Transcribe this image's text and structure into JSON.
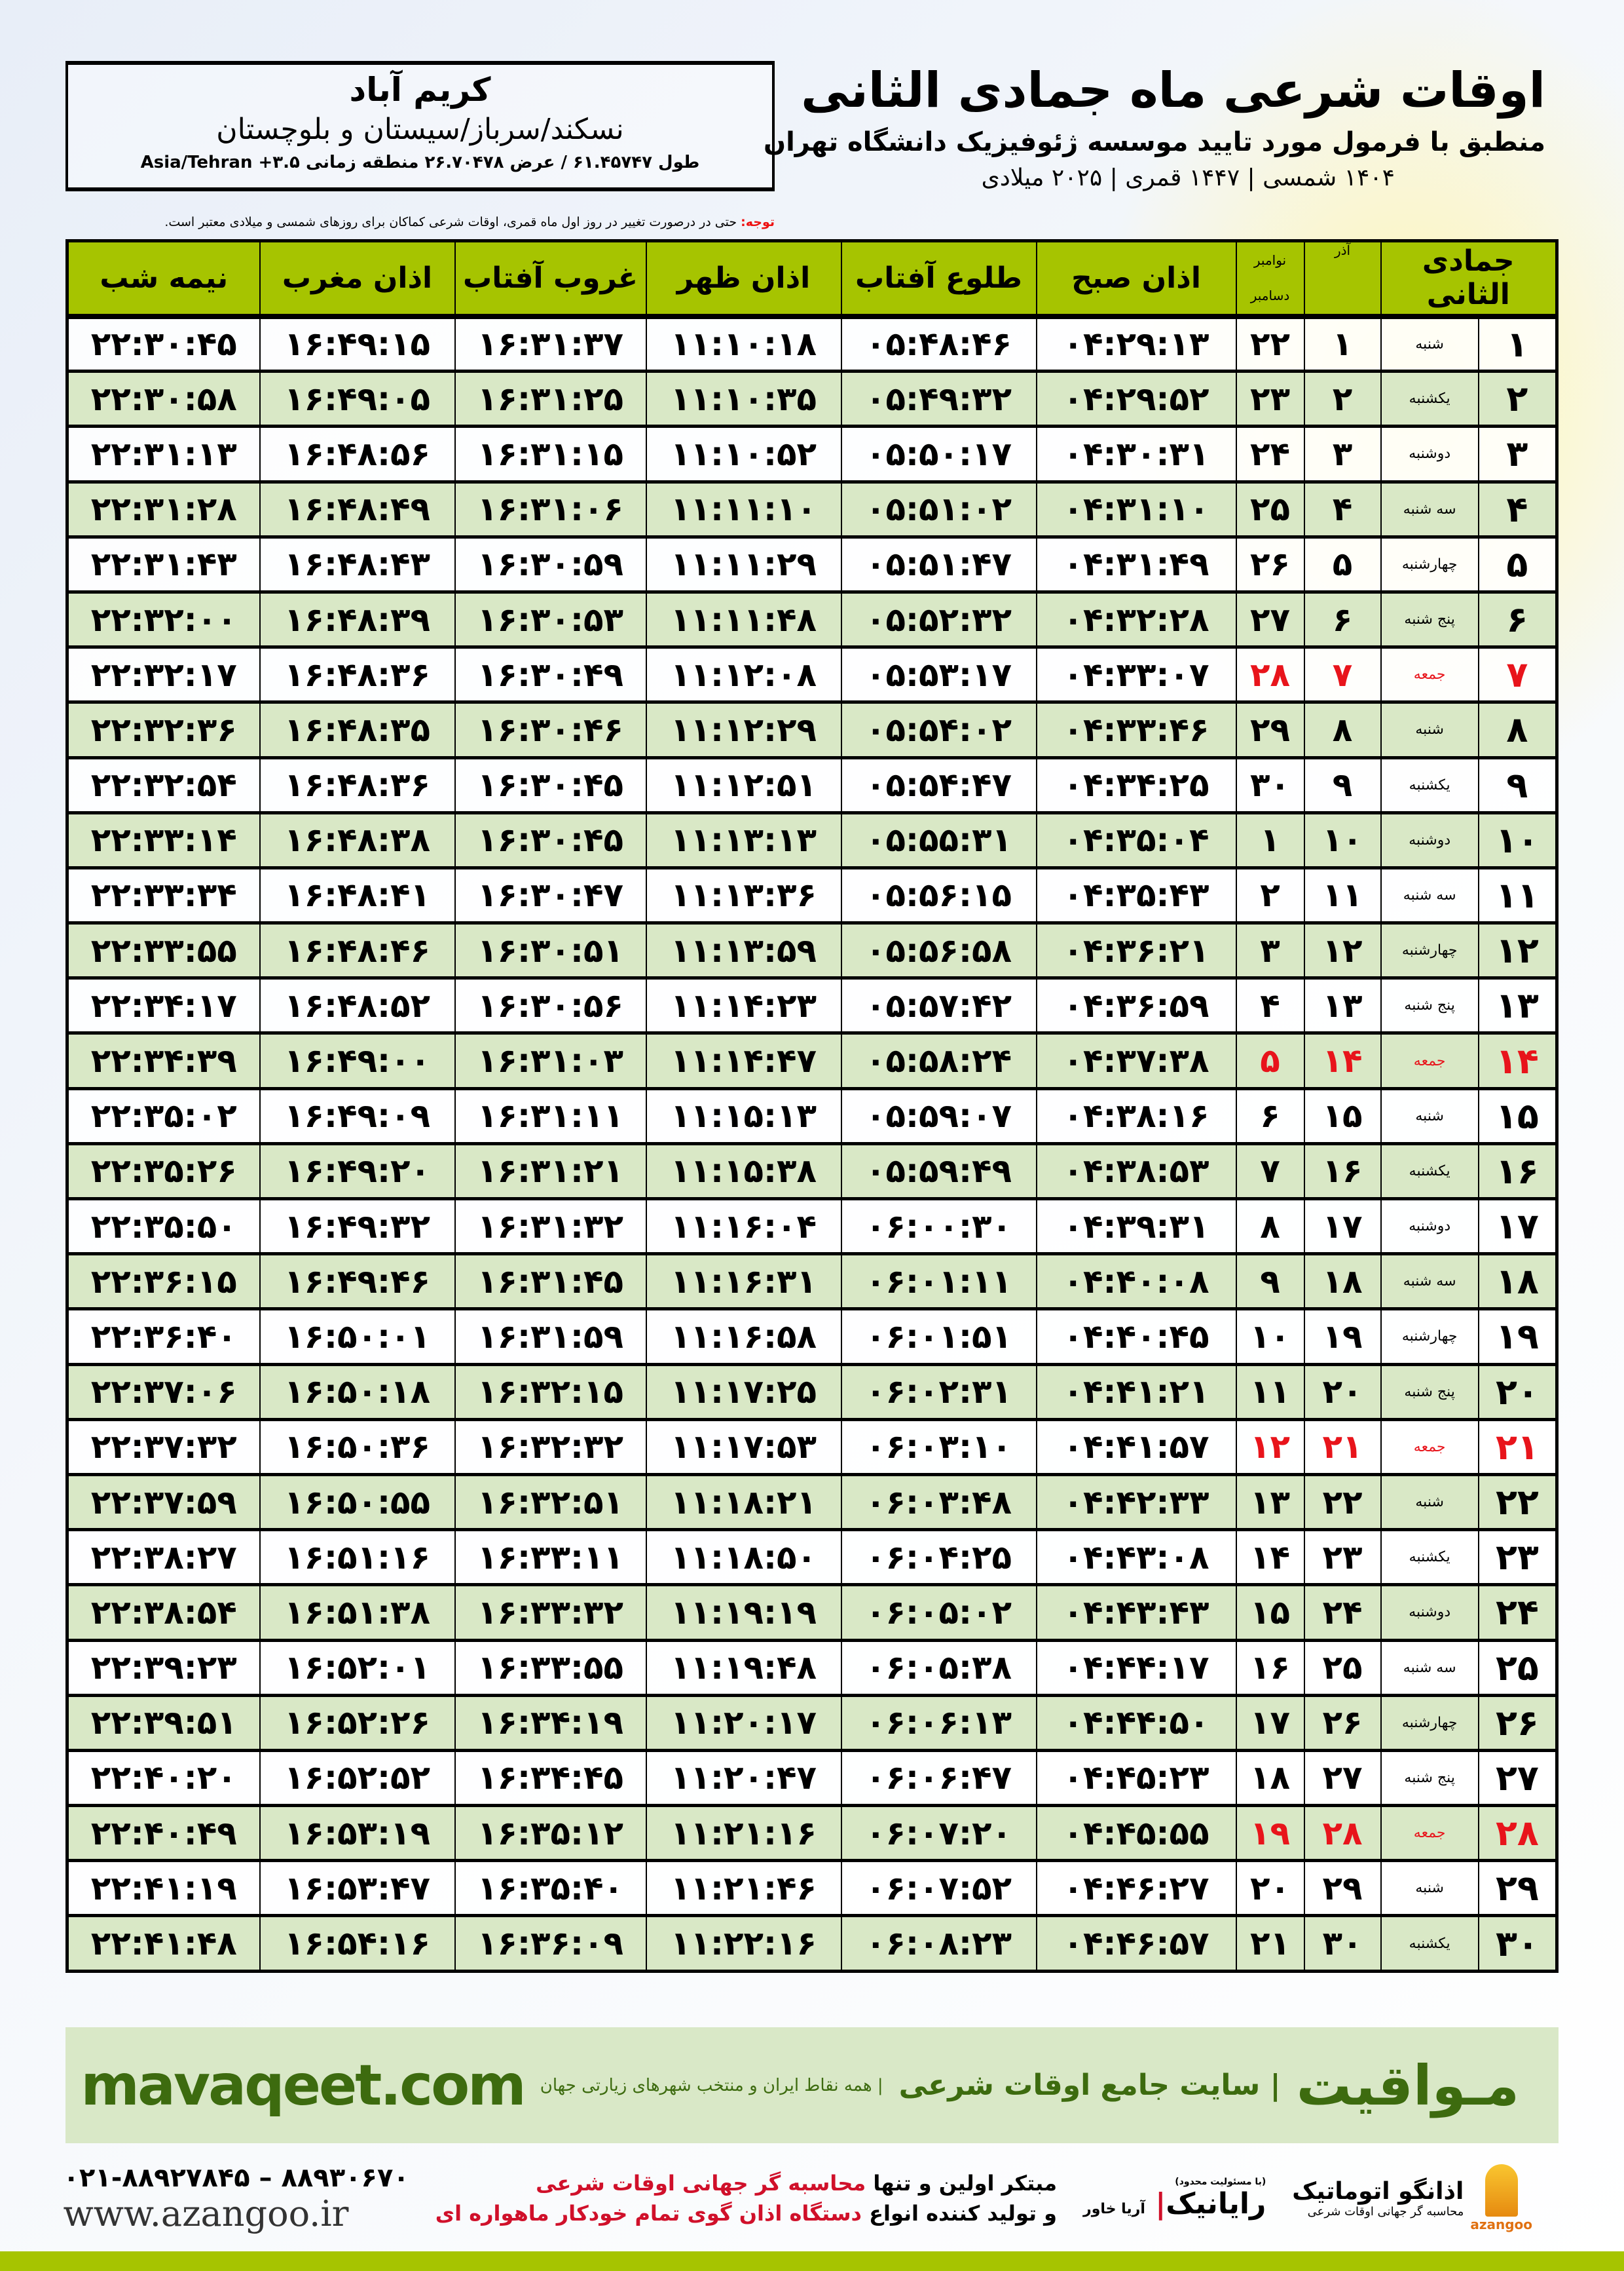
{
  "location": {
    "city": "کریم آباد",
    "region": "نسکند/سرباز/سیستان و بلوچستان",
    "coords": "طول ۶۱.۴۵۷۴۷ / عرض ۲۶.۷۰۴۷۸ منطقه زمانی ۳.۵+ Asia/Tehran"
  },
  "header": {
    "title": "اوقات شرعی ماه جمادی الثانی",
    "subtitle": "منطبق با فرمول مورد تایید موسسه ژئوفیزیک دانشگاه تهران",
    "years": "۱۴۰۴ شمسی | ۱۴۴۷ قمری | ۲۰۲۵ میلادی"
  },
  "notice": {
    "label": "توجه:",
    "text": " حتی در درصورت تغییر در روز اول ماه قمری، اوقات شرعی کماکان برای روزهای شمسی و میلادی معتبر است."
  },
  "table": {
    "columns": {
      "month": "جمادی الثانی",
      "azar": "آذر",
      "greg_top": "نوامبر",
      "greg_bottom": "دسامبر",
      "fajr": "اذان صبح",
      "sunrise": "طلوع آفتاب",
      "dhuhr": "اذان ظهر",
      "sunset": "غروب آفتاب",
      "maghrib": "اذان مغرب",
      "midnight": "نیمه شب"
    },
    "holiday_weekday": "جمعه",
    "holiday_color": "#e8141b",
    "header_color": "#a6c400",
    "alt_row_color": "#d9e8c6",
    "rows": [
      [
        "۱",
        "شنبه",
        "۱",
        "۲۲",
        "۰۴:۲۹:۱۳",
        "۰۵:۴۸:۴۶",
        "۱۱:۱۰:۱۸",
        "۱۶:۳۱:۳۷",
        "۱۶:۴۹:۱۵",
        "۲۲:۳۰:۴۵"
      ],
      [
        "۲",
        "یکشنبه",
        "۲",
        "۲۳",
        "۰۴:۲۹:۵۲",
        "۰۵:۴۹:۳۲",
        "۱۱:۱۰:۳۵",
        "۱۶:۳۱:۲۵",
        "۱۶:۴۹:۰۵",
        "۲۲:۳۰:۵۸"
      ],
      [
        "۳",
        "دوشنبه",
        "۳",
        "۲۴",
        "۰۴:۳۰:۳۱",
        "۰۵:۵۰:۱۷",
        "۱۱:۱۰:۵۲",
        "۱۶:۳۱:۱۵",
        "۱۶:۴۸:۵۶",
        "۲۲:۳۱:۱۳"
      ],
      [
        "۴",
        "سه شنبه",
        "۴",
        "۲۵",
        "۰۴:۳۱:۱۰",
        "۰۵:۵۱:۰۲",
        "۱۱:۱۱:۱۰",
        "۱۶:۳۱:۰۶",
        "۱۶:۴۸:۴۹",
        "۲۲:۳۱:۲۸"
      ],
      [
        "۵",
        "چهارشنبه",
        "۵",
        "۲۶",
        "۰۴:۳۱:۴۹",
        "۰۵:۵۱:۴۷",
        "۱۱:۱۱:۲۹",
        "۱۶:۳۰:۵۹",
        "۱۶:۴۸:۴۳",
        "۲۲:۳۱:۴۳"
      ],
      [
        "۶",
        "پنج شنبه",
        "۶",
        "۲۷",
        "۰۴:۳۲:۲۸",
        "۰۵:۵۲:۳۲",
        "۱۱:۱۱:۴۸",
        "۱۶:۳۰:۵۳",
        "۱۶:۴۸:۳۹",
        "۲۲:۳۲:۰۰"
      ],
      [
        "۷",
        "جمعه",
        "۷",
        "۲۸",
        "۰۴:۳۳:۰۷",
        "۰۵:۵۳:۱۷",
        "۱۱:۱۲:۰۸",
        "۱۶:۳۰:۴۹",
        "۱۶:۴۸:۳۶",
        "۲۲:۳۲:۱۷"
      ],
      [
        "۸",
        "شنبه",
        "۸",
        "۲۹",
        "۰۴:۳۳:۴۶",
        "۰۵:۵۴:۰۲",
        "۱۱:۱۲:۲۹",
        "۱۶:۳۰:۴۶",
        "۱۶:۴۸:۳۵",
        "۲۲:۳۲:۳۶"
      ],
      [
        "۹",
        "یکشنبه",
        "۹",
        "۳۰",
        "۰۴:۳۴:۲۵",
        "۰۵:۵۴:۴۷",
        "۱۱:۱۲:۵۱",
        "۱۶:۳۰:۴۵",
        "۱۶:۴۸:۳۶",
        "۲۲:۳۲:۵۴"
      ],
      [
        "۱۰",
        "دوشنبه",
        "۱۰",
        "۱",
        "۰۴:۳۵:۰۴",
        "۰۵:۵۵:۳۱",
        "۱۱:۱۳:۱۳",
        "۱۶:۳۰:۴۵",
        "۱۶:۴۸:۳۸",
        "۲۲:۳۳:۱۴"
      ],
      [
        "۱۱",
        "سه شنبه",
        "۱۱",
        "۲",
        "۰۴:۳۵:۴۳",
        "۰۵:۵۶:۱۵",
        "۱۱:۱۳:۳۶",
        "۱۶:۳۰:۴۷",
        "۱۶:۴۸:۴۱",
        "۲۲:۳۳:۳۴"
      ],
      [
        "۱۲",
        "چهارشنبه",
        "۱۲",
        "۳",
        "۰۴:۳۶:۲۱",
        "۰۵:۵۶:۵۸",
        "۱۱:۱۳:۵۹",
        "۱۶:۳۰:۵۱",
        "۱۶:۴۸:۴۶",
        "۲۲:۳۳:۵۵"
      ],
      [
        "۱۳",
        "پنج شنبه",
        "۱۳",
        "۴",
        "۰۴:۳۶:۵۹",
        "۰۵:۵۷:۴۲",
        "۱۱:۱۴:۲۳",
        "۱۶:۳۰:۵۶",
        "۱۶:۴۸:۵۲",
        "۲۲:۳۴:۱۷"
      ],
      [
        "۱۴",
        "جمعه",
        "۱۴",
        "۵",
        "۰۴:۳۷:۳۸",
        "۰۵:۵۸:۲۴",
        "۱۱:۱۴:۴۷",
        "۱۶:۳۱:۰۳",
        "۱۶:۴۹:۰۰",
        "۲۲:۳۴:۳۹"
      ],
      [
        "۱۵",
        "شنبه",
        "۱۵",
        "۶",
        "۰۴:۳۸:۱۶",
        "۰۵:۵۹:۰۷",
        "۱۱:۱۵:۱۳",
        "۱۶:۳۱:۱۱",
        "۱۶:۴۹:۰۹",
        "۲۲:۳۵:۰۲"
      ],
      [
        "۱۶",
        "یکشنبه",
        "۱۶",
        "۷",
        "۰۴:۳۸:۵۳",
        "۰۵:۵۹:۴۹",
        "۱۱:۱۵:۳۸",
        "۱۶:۳۱:۲۱",
        "۱۶:۴۹:۲۰",
        "۲۲:۳۵:۲۶"
      ],
      [
        "۱۷",
        "دوشنبه",
        "۱۷",
        "۸",
        "۰۴:۳۹:۳۱",
        "۰۶:۰۰:۳۰",
        "۱۱:۱۶:۰۴",
        "۱۶:۳۱:۳۲",
        "۱۶:۴۹:۳۲",
        "۲۲:۳۵:۵۰"
      ],
      [
        "۱۸",
        "سه شنبه",
        "۱۸",
        "۹",
        "۰۴:۴۰:۰۸",
        "۰۶:۰۱:۱۱",
        "۱۱:۱۶:۳۱",
        "۱۶:۳۱:۴۵",
        "۱۶:۴۹:۴۶",
        "۲۲:۳۶:۱۵"
      ],
      [
        "۱۹",
        "چهارشنبه",
        "۱۹",
        "۱۰",
        "۰۴:۴۰:۴۵",
        "۰۶:۰۱:۵۱",
        "۱۱:۱۶:۵۸",
        "۱۶:۳۱:۵۹",
        "۱۶:۵۰:۰۱",
        "۲۲:۳۶:۴۰"
      ],
      [
        "۲۰",
        "پنج شنبه",
        "۲۰",
        "۱۱",
        "۰۴:۴۱:۲۱",
        "۰۶:۰۲:۳۱",
        "۱۱:۱۷:۲۵",
        "۱۶:۳۲:۱۵",
        "۱۶:۵۰:۱۸",
        "۲۲:۳۷:۰۶"
      ],
      [
        "۲۱",
        "جمعه",
        "۲۱",
        "۱۲",
        "۰۴:۴۱:۵۷",
        "۰۶:۰۳:۱۰",
        "۱۱:۱۷:۵۳",
        "۱۶:۳۲:۳۲",
        "۱۶:۵۰:۳۶",
        "۲۲:۳۷:۳۲"
      ],
      [
        "۲۲",
        "شنبه",
        "۲۲",
        "۱۳",
        "۰۴:۴۲:۳۳",
        "۰۶:۰۳:۴۸",
        "۱۱:۱۸:۲۱",
        "۱۶:۳۲:۵۱",
        "۱۶:۵۰:۵۵",
        "۲۲:۳۷:۵۹"
      ],
      [
        "۲۳",
        "یکشنبه",
        "۲۳",
        "۱۴",
        "۰۴:۴۳:۰۸",
        "۰۶:۰۴:۲۵",
        "۱۱:۱۸:۵۰",
        "۱۶:۳۳:۱۱",
        "۱۶:۵۱:۱۶",
        "۲۲:۳۸:۲۷"
      ],
      [
        "۲۴",
        "دوشنبه",
        "۲۴",
        "۱۵",
        "۰۴:۴۳:۴۳",
        "۰۶:۰۵:۰۲",
        "۱۱:۱۹:۱۹",
        "۱۶:۳۳:۳۲",
        "۱۶:۵۱:۳۸",
        "۲۲:۳۸:۵۴"
      ],
      [
        "۲۵",
        "سه شنبه",
        "۲۵",
        "۱۶",
        "۰۴:۴۴:۱۷",
        "۰۶:۰۵:۳۸",
        "۱۱:۱۹:۴۸",
        "۱۶:۳۳:۵۵",
        "۱۶:۵۲:۰۱",
        "۲۲:۳۹:۲۳"
      ],
      [
        "۲۶",
        "چهارشنبه",
        "۲۶",
        "۱۷",
        "۰۴:۴۴:۵۰",
        "۰۶:۰۶:۱۳",
        "۱۱:۲۰:۱۷",
        "۱۶:۳۴:۱۹",
        "۱۶:۵۲:۲۶",
        "۲۲:۳۹:۵۱"
      ],
      [
        "۲۷",
        "پنج شنبه",
        "۲۷",
        "۱۸",
        "۰۴:۴۵:۲۳",
        "۰۶:۰۶:۴۷",
        "۱۱:۲۰:۴۷",
        "۱۶:۳۴:۴۵",
        "۱۶:۵۲:۵۲",
        "۲۲:۴۰:۲۰"
      ],
      [
        "۲۸",
        "جمعه",
        "۲۸",
        "۱۹",
        "۰۴:۴۵:۵۵",
        "۰۶:۰۷:۲۰",
        "۱۱:۲۱:۱۶",
        "۱۶:۳۵:۱۲",
        "۱۶:۵۳:۱۹",
        "۲۲:۴۰:۴۹"
      ],
      [
        "۲۹",
        "شنبه",
        "۲۹",
        "۲۰",
        "۰۴:۴۶:۲۷",
        "۰۶:۰۷:۵۲",
        "۱۱:۲۱:۴۶",
        "۱۶:۳۵:۴۰",
        "۱۶:۵۳:۴۷",
        "۲۲:۴۱:۱۹"
      ],
      [
        "۳۰",
        "یکشنبه",
        "۳۰",
        "۲۱",
        "۰۴:۴۶:۵۷",
        "۰۶:۰۸:۲۳",
        "۱۱:۲۲:۱۶",
        "۱۶:۳۶:۰۹",
        "۱۶:۵۴:۱۶",
        "۲۲:۴۱:۴۸"
      ]
    ]
  },
  "footer": {
    "brand": "مـواقیت",
    "slogan": "| سایت جامع اوقات شرعی",
    "slogan_sub": "| همه نقاط ایران و منتخب شهرهای زیارتی جهان",
    "site": "mavaqeet.com",
    "brand_color": "#3d6b0f",
    "phone": "۰۲۱-۸۸۹۲۷۸۴۵ – ۸۸۹۳۰۶۷۰",
    "web": "www.azangoo.ir",
    "promo_line1_a": "مبتکر اولین و تنها ",
    "promo_line1_b": "محاسبه گر جهانی اوقات شرعی",
    "promo_line2_a": "و تولید کننده انواع ",
    "promo_line2_b": "دستگاه اذان گوی تمام خودکار ماهواره ای",
    "logo_rayanik": "رایانیک",
    "logo_rayanik_sub": "آریا خاور",
    "logo_rayanik_note": "(با مسئولیت محدود)",
    "logo_azangoo": "اذانگو اتوماتیک",
    "logo_azangoo_sub": "محاسبه گر جهانی اوقات شرعی",
    "logo_azangoo_en": "azangoo"
  }
}
